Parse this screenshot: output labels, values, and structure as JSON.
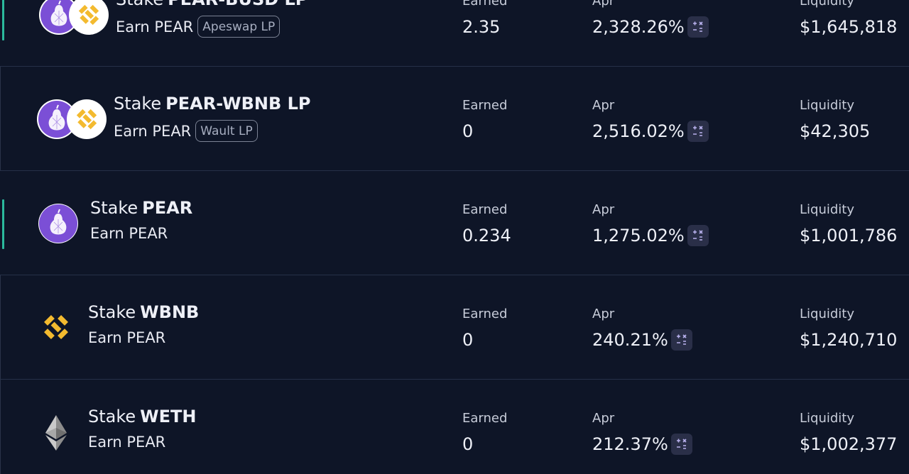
{
  "farms": [
    {
      "stake_prefix": "Stake",
      "stake_pair": "PEAR-BUSD LP",
      "earn_text": "Earn PEAR",
      "tag": "Apeswap LP",
      "earned_label": "Earned",
      "earned_value": "2.35",
      "apr_label": "Apr",
      "apr_value": "2,328.26%",
      "liquidity_label": "Liquidity",
      "liquidity_value": "$1,645,818",
      "icon": "pear-busd-icon",
      "accent": true
    },
    {
      "stake_prefix": "Stake",
      "stake_pair": "PEAR-WBNB LP",
      "earn_text": "Earn PEAR",
      "tag": "Wault LP",
      "earned_label": "Earned",
      "earned_value": "0",
      "apr_label": "Apr",
      "apr_value": "2,516.02%",
      "liquidity_label": "Liquidity",
      "liquidity_value": "$42,305",
      "icon": "pear-wbnb-icon",
      "accent": false
    },
    {
      "stake_prefix": "Stake",
      "stake_pair": "PEAR",
      "earn_text": "Earn PEAR",
      "tag": "",
      "earned_label": "Earned",
      "earned_value": "0.234",
      "apr_label": "Apr",
      "apr_value": "1,275.02%",
      "liquidity_label": "Liquidity",
      "liquidity_value": "$1,001,786",
      "icon": "pear-icon",
      "accent": true
    },
    {
      "stake_prefix": "Stake",
      "stake_pair": "WBNB",
      "earn_text": "Earn PEAR",
      "tag": "",
      "earned_label": "Earned",
      "earned_value": "0",
      "apr_label": "Apr",
      "apr_value": "240.21%",
      "liquidity_label": "Liquidity",
      "liquidity_value": "$1,240,710",
      "icon": "bnb-icon",
      "accent": false
    },
    {
      "stake_prefix": "Stake",
      "stake_pair": "WETH",
      "earn_text": "Earn PEAR",
      "tag": "",
      "earned_label": "Earned",
      "earned_value": "0",
      "apr_label": "Apr",
      "apr_value": "212.37%",
      "liquidity_label": "Liquidity",
      "liquidity_value": "$1,002,377",
      "icon": "eth-icon",
      "accent": false
    }
  ],
  "colors": {
    "background": "#0e1527",
    "accent": "#2bb99d",
    "pear_purple": "#7b4fd6",
    "bnb_yellow": "#f3ba2f",
    "calc_button": "#2a2f48"
  }
}
